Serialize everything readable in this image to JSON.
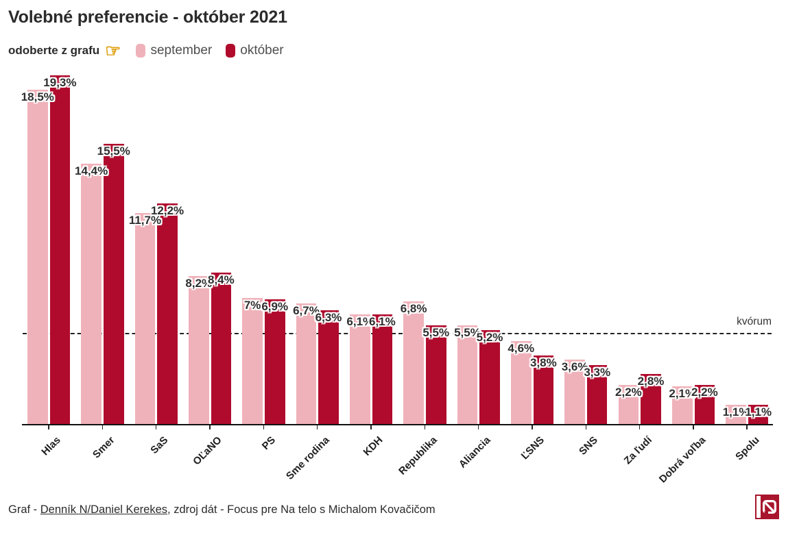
{
  "header": {
    "title": "Volebné preferencie - október 2021",
    "hint": "odoberte z grafu",
    "pointer_icon": {
      "glyph": "☞",
      "color": "#dd9900"
    }
  },
  "legend": {
    "items": [
      {
        "label": "september",
        "color": "#f0b2ba"
      },
      {
        "label": "október",
        "color": "#b00b2d"
      }
    ]
  },
  "chart_data": {
    "type": "bar",
    "title": "Volebné preferencie - október 2021",
    "categories": [
      "Hlas",
      "Smer",
      "SaS",
      "OĽaNO",
      "PS",
      "Sme rodina",
      "KDH",
      "Republika",
      "Aliancia",
      "ĽSNS",
      "SNS",
      "Za ľudí",
      "Dobrá voľba",
      "Spolu"
    ],
    "series": [
      {
        "name": "september",
        "color": "#f0b2ba",
        "values": [
          18.5,
          14.4,
          11.7,
          8.2,
          7.0,
          6.7,
          6.1,
          6.8,
          5.5,
          4.6,
          3.6,
          2.2,
          2.1,
          1.1
        ],
        "labels": [
          "18,5%",
          "14,4%",
          "11,7%",
          "8,2%",
          "7%",
          "6,7%",
          "6,1%",
          "6,8%",
          "5,5%",
          "4,6%",
          "3,6%",
          "2,2%",
          "2,1%",
          "1,1%"
        ]
      },
      {
        "name": "október",
        "color": "#b00b2d",
        "values": [
          19.3,
          15.5,
          12.2,
          8.4,
          6.9,
          6.3,
          6.1,
          5.5,
          5.2,
          3.8,
          3.3,
          2.8,
          2.2,
          1.1
        ],
        "labels": [
          "19,3%",
          "15,5%",
          "12,2%",
          "8,4%",
          "6,9%",
          "6,3%",
          "6,1%",
          "5,5%",
          "5,2%",
          "3,8%",
          "3,3%",
          "2,8%",
          "2,2%",
          "1,1%"
        ]
      }
    ],
    "quorum_line": {
      "value": 5,
      "label": "kvórum"
    },
    "ylim": [
      0,
      20
    ],
    "grid": false,
    "legend_position": "top",
    "xlabel": "",
    "ylabel": ""
  },
  "footer": {
    "text_prefix": "Graf - ",
    "link_text": "Denník N/Daniel Kerekes",
    "text_suffix": ", zdroj dát - Focus pre Na telo s Michalom Kovačičom",
    "logo": {
      "vertical_text": "DENNÍK",
      "letter": "N",
      "color": "#a8152c"
    }
  }
}
